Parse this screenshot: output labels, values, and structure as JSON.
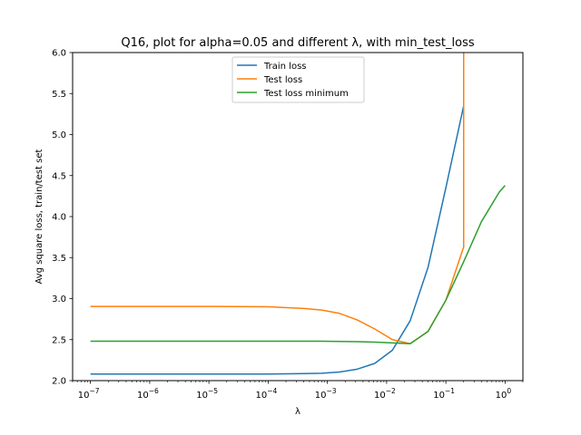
{
  "chart_data": {
    "type": "line",
    "title": "Q16, plot for alpha=0.05 and different λ, with min_test_loss",
    "xlabel": "λ",
    "ylabel": "Avg square loss, train/test set",
    "xscale": "log",
    "xlim": [
      5e-08,
      2.0
    ],
    "ylim": [
      2.0,
      6.0
    ],
    "grid": false,
    "legend_position": "upper-center",
    "x_ticks": [
      {
        "value": 1e-07,
        "base": "10",
        "exp": "−7"
      },
      {
        "value": 1e-06,
        "base": "10",
        "exp": "−6"
      },
      {
        "value": 1e-05,
        "base": "10",
        "exp": "−5"
      },
      {
        "value": 0.0001,
        "base": "10",
        "exp": "−4"
      },
      {
        "value": 0.001,
        "base": "10",
        "exp": "−3"
      },
      {
        "value": 0.01,
        "base": "10",
        "exp": "−2"
      },
      {
        "value": 0.1,
        "base": "10",
        "exp": "−1"
      },
      {
        "value": 1,
        "base": "10",
        "exp": "0"
      }
    ],
    "y_ticks": [
      {
        "value": 2.0,
        "label": "2.0"
      },
      {
        "value": 2.5,
        "label": "2.5"
      },
      {
        "value": 3.0,
        "label": "3.0"
      },
      {
        "value": 3.5,
        "label": "3.5"
      },
      {
        "value": 4.0,
        "label": "4.0"
      },
      {
        "value": 4.5,
        "label": "4.5"
      },
      {
        "value": 5.0,
        "label": "5.0"
      },
      {
        "value": 5.5,
        "label": "5.5"
      },
      {
        "value": 6.0,
        "label": "6.0"
      }
    ],
    "series": [
      {
        "name": "Train loss",
        "color": "#1f77b4",
        "x": [
          1e-07,
          1e-06,
          1e-05,
          0.0001,
          0.0004,
          0.0008,
          0.0016,
          0.0032,
          0.0063,
          0.0125,
          0.025,
          0.05,
          0.1,
          0.2
        ],
        "y": [
          2.08,
          2.08,
          2.08,
          2.08,
          2.085,
          2.09,
          2.105,
          2.14,
          2.21,
          2.37,
          2.73,
          3.38,
          4.35,
          5.35
        ]
      },
      {
        "name": "Test loss",
        "color": "#ff7f0e",
        "x": [
          1e-07,
          1e-06,
          1e-05,
          0.0001,
          0.0004,
          0.0008,
          0.0016,
          0.0032,
          0.0063,
          0.0125,
          0.025,
          0.05,
          0.1,
          0.2,
          0.2,
          0.2
        ],
        "y": [
          2.905,
          2.905,
          2.905,
          2.9,
          2.88,
          2.86,
          2.82,
          2.74,
          2.63,
          2.5,
          2.45,
          2.6,
          2.98,
          3.63,
          5.0,
          6.5
        ]
      },
      {
        "name": "Test loss minimum",
        "color": "#2ca02c",
        "x": [
          1e-07,
          1e-06,
          1e-05,
          0.0001,
          0.0004,
          0.0008,
          0.0016,
          0.0032,
          0.0063,
          0.0125,
          0.025,
          0.05,
          0.1,
          0.2,
          0.4,
          0.8,
          1.0
        ],
        "y": [
          2.48,
          2.48,
          2.48,
          2.48,
          2.48,
          2.48,
          2.478,
          2.475,
          2.47,
          2.46,
          2.45,
          2.6,
          2.98,
          3.45,
          3.94,
          4.3,
          4.38
        ]
      }
    ]
  }
}
